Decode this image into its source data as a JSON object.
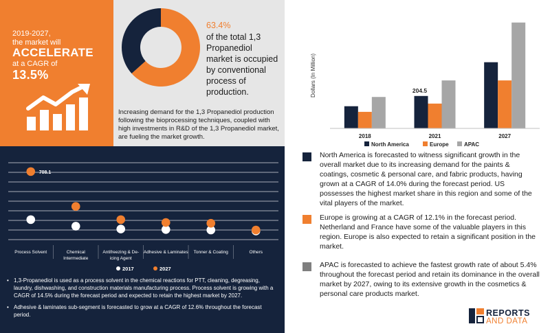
{
  "cagr_panel": {
    "period": "2019-2027,",
    "line2": "the market will",
    "headline": "ACCELERATE",
    "line4": "at a CAGR of",
    "cagr": "13.5%",
    "colors": {
      "background": "#f07f2f",
      "icon": "#ffffff"
    },
    "icon": "growth-chart-icon"
  },
  "donut_panel": {
    "percent_text": "63.4%",
    "description": "of the total 1,3 Propanediol market is occupied by conventional process of production.",
    "growth_text": "Increasing demand for the 1,3 Propanediol production following the bioprocessing techniques, coupled with high investments in R&D of the 1,3 Propanediol market, are fueling the market growth.",
    "colors": {
      "main": "#f07f2f",
      "rest": "#15233c"
    }
  },
  "bullets": [
    "1,3-Propanediol is used as a process solvent in the chemical reactions for PTT, cleaning, degreasing, laundry, dishwashing, and construction materials manufacturing process. Process solvent is growing with a CAGR of 14.5% during the forecast period and expected to retain the highest market by 2027.",
    "Adhesive & laminates sub-segment is forecasted to grow at a CAGR of 12.6% throughout the forecast period."
  ],
  "region_notes": [
    {
      "color": "#15233c",
      "text": "North America is forecasted to witness significant growth in the overall market due to its increasing demand for the paints & coatings, cosmetic & personal care, and fabric products, having grown at a CAGR of 14.0% during the forecast period. US possesses the highest market share in this region and some of the vital players of the market."
    },
    {
      "color": "#f07f2f",
      "text": "Europe is growing at a CAGR of 12.1% in the forecast period. Netherland and France have some of the valuable players in this region. Europe is also expected to retain a significant position in the market."
    },
    {
      "color": "#7f7f7f",
      "text": "APAC is forecasted to achieve the fastest growth rate of about 5.4% throughout the forecast period and retain its dominance in the overall market by 2027, owing to its extensive growth in the cosmetics & personal care products market."
    }
  ],
  "logo": {
    "line1": "REPORTS",
    "line2": "AND DATA"
  },
  "chart_data": [
    {
      "type": "pie",
      "categories": [
        "Conventional process",
        "Other"
      ],
      "values": [
        63.4,
        36.6
      ],
      "title": "",
      "colors": [
        "#f07f2f",
        "#15233c"
      ]
    },
    {
      "type": "bar",
      "categories": [
        "2018",
        "2021",
        "2027"
      ],
      "ylabel": "Dollars (In Million)",
      "ylim": [
        0,
        330
      ],
      "grid": false,
      "legend": "bottom",
      "series": [
        {
          "name": "North America",
          "values": [
            67,
            98,
            200
          ],
          "color": "#15233c"
        },
        {
          "name": "Europe",
          "values": [
            50,
            75,
            145
          ],
          "color": "#f07f2f"
        },
        {
          "name": "APAC",
          "values": [
            95,
            145,
            320
          ],
          "color": "#a6a6a6"
        }
      ],
      "annotations": [
        {
          "category": "2021",
          "text": "204.5"
        }
      ]
    },
    {
      "type": "scatter",
      "categories": [
        "Process Solvent",
        "Chemical Intermediate",
        "Antifreezing & De-icing Agent",
        "Adhesive & Laminates",
        "Tonner & Coating",
        "Others"
      ],
      "category_lines": [
        [
          "Process Solvent"
        ],
        [
          "Chemical",
          "Intermediate"
        ],
        [
          "Antifreezing & De-",
          "icing Agent"
        ],
        [
          "Adhesive & Laminates"
        ],
        [
          "Tonner & Coating"
        ],
        [
          "Others"
        ]
      ],
      "ylim": [
        0,
        800
      ],
      "grid": true,
      "legend": "bottom",
      "series": [
        {
          "name": "2017",
          "values": [
            208,
            140,
            110,
            105,
            100,
            90
          ],
          "color": "#ffffff"
        },
        {
          "name": "2027",
          "values": [
            708.1,
            345,
            208,
            178,
            170,
            100
          ],
          "color": "#f07f2f"
        }
      ],
      "annotations": [
        {
          "category": "Process Solvent",
          "series": "2027",
          "text": "708.1"
        }
      ]
    }
  ]
}
